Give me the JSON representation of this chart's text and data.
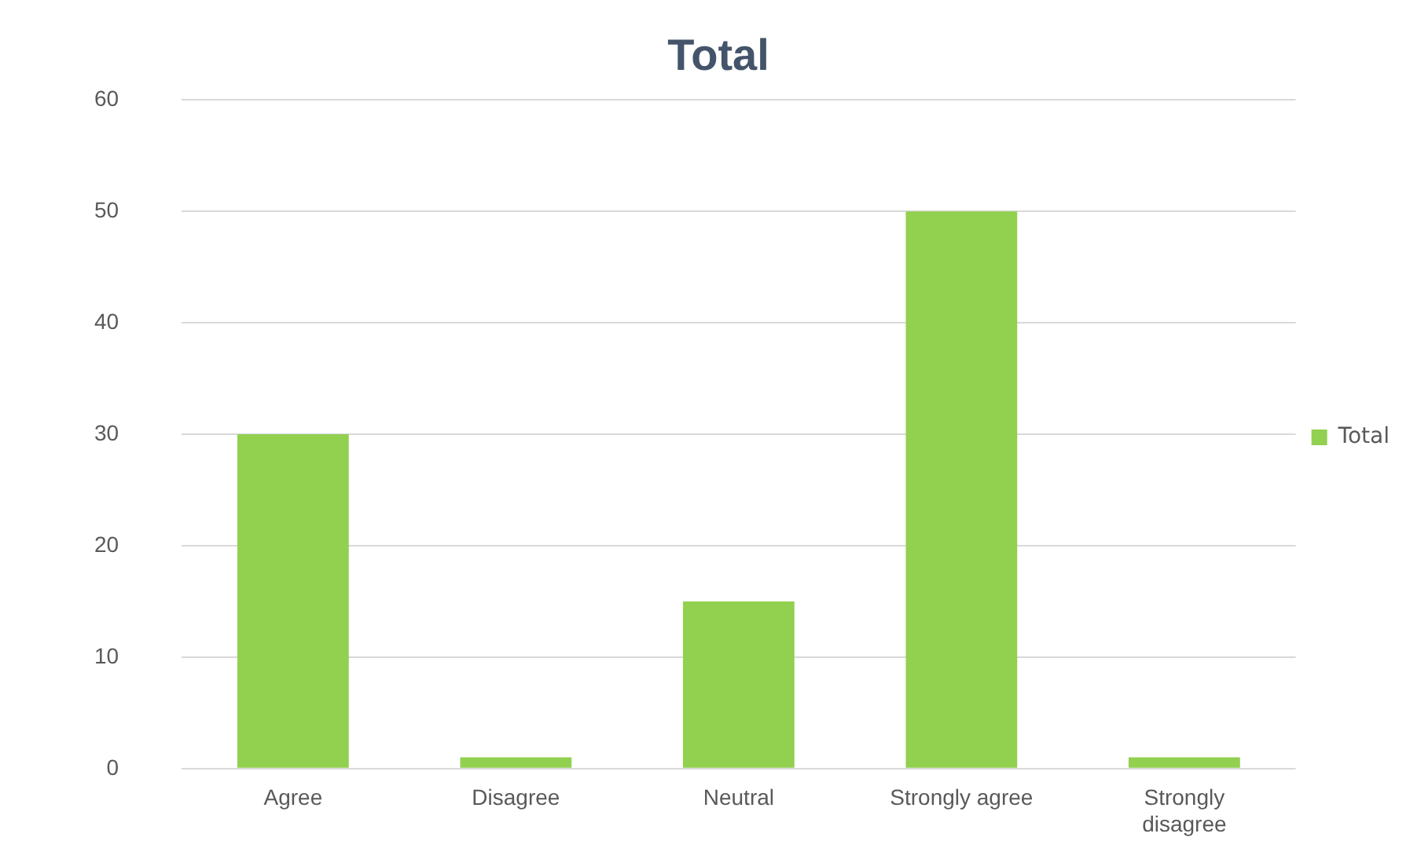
{
  "chart_data": {
    "type": "bar",
    "title": "Total",
    "categories": [
      "Agree",
      "Disagree",
      "Neutral",
      "Strongly agree",
      "Strongly disagree"
    ],
    "series": [
      {
        "name": "Total",
        "color": "#92d050",
        "values": [
          30,
          1,
          15,
          50,
          1
        ]
      }
    ],
    "ylim": [
      0,
      60
    ],
    "yticks": [
      0,
      10,
      20,
      30,
      40,
      50,
      60
    ],
    "grid": "y",
    "legend": "right"
  }
}
